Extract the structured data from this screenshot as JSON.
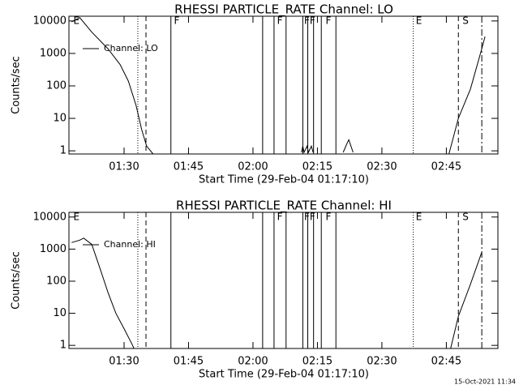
{
  "chart_data": [
    {
      "type": "line",
      "title": "RHESSI PARTICLE_RATE Channel: LO",
      "xlabel": "Start Time (29-Feb-04 01:17:10)",
      "ylabel": "Counts/sec",
      "log_y": true,
      "legend": "top-left",
      "xlim": [
        77.17,
        177
      ],
      "ylim": [
        0.8,
        14000
      ],
      "xticks": [
        {
          "value": 90,
          "label": "01:30"
        },
        {
          "value": 105,
          "label": "01:45"
        },
        {
          "value": 120,
          "label": "02:00"
        },
        {
          "value": 135,
          "label": "02:15"
        },
        {
          "value": 150,
          "label": "02:30"
        },
        {
          "value": 165,
          "label": "02:45"
        }
      ],
      "yticks": [
        1,
        10,
        100,
        1000,
        10000
      ],
      "series": [
        {
          "name": "Channel: LO",
          "color": "#000000",
          "x": [
            77.8,
            79.7,
            82.5,
            86.25,
            89.1,
            91,
            92.8,
            94.1,
            95.25,
            96.75,
            null,
            131.3,
            131.6,
            131.9,
            132.6,
            132.9,
            133.6,
            134,
            null,
            141,
            141.8,
            142.3,
            142.8,
            143.3,
            null,
            165.6,
            167.8,
            170.6,
            173.25,
            174
          ],
          "values": [
            9440,
            12600,
            4500,
            1400,
            450,
            140,
            25,
            4.5,
            1.4,
            0.8,
            null,
            0.9,
            1.4,
            0.9,
            1.4,
            0.9,
            1.4,
            0.9,
            null,
            0.9,
            1.6,
            2.2,
            1.4,
            0.9,
            null,
            0.8,
            10,
            80,
            1400,
            3300
          ]
        }
      ],
      "vlines": [
        {
          "x": 93.2,
          "style": "dotted"
        },
        {
          "x": 95.1,
          "style": "dashed"
        },
        {
          "x": 100.9,
          "style": "solid"
        },
        {
          "x": 122.25,
          "style": "solid"
        },
        {
          "x": 124.9,
          "style": "solid"
        },
        {
          "x": 127.7,
          "style": "solid"
        },
        {
          "x": 131.6,
          "style": "solid"
        },
        {
          "x": 132.75,
          "style": "solid"
        },
        {
          "x": 134.1,
          "style": "solid"
        },
        {
          "x": 135.9,
          "style": "solid"
        },
        {
          "x": 139.3,
          "style": "solid"
        },
        {
          "x": 157.3,
          "style": "dotted"
        },
        {
          "x": 167.8,
          "style": "dashed"
        },
        {
          "x": 173.25,
          "style": "dashdot"
        }
      ],
      "annotations": [
        {
          "x": 78.2,
          "text": "E"
        },
        {
          "x": 101.6,
          "text": "F"
        },
        {
          "x": 125.6,
          "text": "F"
        },
        {
          "x": 131.9,
          "text": "F"
        },
        {
          "x": 133.2,
          "text": "F"
        },
        {
          "x": 136.9,
          "text": "F"
        },
        {
          "x": 157.9,
          "text": "E"
        },
        {
          "x": 168.75,
          "text": "S"
        }
      ]
    },
    {
      "type": "line",
      "title": "RHESSI PARTICLE_RATE Channel: HI",
      "xlabel": "Start Time (29-Feb-04 01:17:10)",
      "ylabel": "Counts/sec",
      "log_y": true,
      "legend": "top-left",
      "xlim": [
        77.17,
        177
      ],
      "ylim": [
        0.8,
        14000
      ],
      "xticks": [
        {
          "value": 90,
          "label": "01:30"
        },
        {
          "value": 105,
          "label": "01:45"
        },
        {
          "value": 120,
          "label": "02:00"
        },
        {
          "value": 135,
          "label": "02:15"
        },
        {
          "value": 150,
          "label": "02:30"
        },
        {
          "value": 165,
          "label": "02:45"
        }
      ],
      "yticks": [
        1,
        10,
        100,
        1000,
        10000
      ],
      "series": [
        {
          "name": "Channel: HI",
          "color": "#000000",
          "x": [
            77.8,
            79.7,
            80.6,
            82.5,
            84.4,
            86.25,
            88.1,
            90.0,
            91.9,
            92.5,
            null,
            166,
            167.8,
            170.6,
            173.25
          ],
          "values": [
            1600,
            1900,
            2200,
            1400,
            250,
            45,
            10,
            3.3,
            1.05,
            0.7,
            null,
            0.8,
            8,
            80,
            800
          ]
        }
      ],
      "vlines": [
        {
          "x": 93.2,
          "style": "dotted"
        },
        {
          "x": 95.1,
          "style": "dashed"
        },
        {
          "x": 100.9,
          "style": "solid"
        },
        {
          "x": 122.25,
          "style": "solid"
        },
        {
          "x": 124.9,
          "style": "solid"
        },
        {
          "x": 127.7,
          "style": "solid"
        },
        {
          "x": 131.6,
          "style": "solid"
        },
        {
          "x": 132.75,
          "style": "solid"
        },
        {
          "x": 134.1,
          "style": "solid"
        },
        {
          "x": 135.9,
          "style": "solid"
        },
        {
          "x": 139.3,
          "style": "solid"
        },
        {
          "x": 157.3,
          "style": "dotted"
        },
        {
          "x": 167.8,
          "style": "dashed"
        },
        {
          "x": 173.25,
          "style": "dashdot"
        }
      ],
      "annotations": [
        {
          "x": 78.2,
          "text": "E"
        },
        {
          "x": 125.6,
          "text": "F"
        },
        {
          "x": 131.9,
          "text": "F"
        },
        {
          "x": 133.2,
          "text": "F"
        },
        {
          "x": 136.9,
          "text": "F"
        },
        {
          "x": 157.9,
          "text": "E"
        },
        {
          "x": 168.75,
          "text": "S"
        }
      ]
    }
  ],
  "footer": "15-Oct-2021 11:34"
}
